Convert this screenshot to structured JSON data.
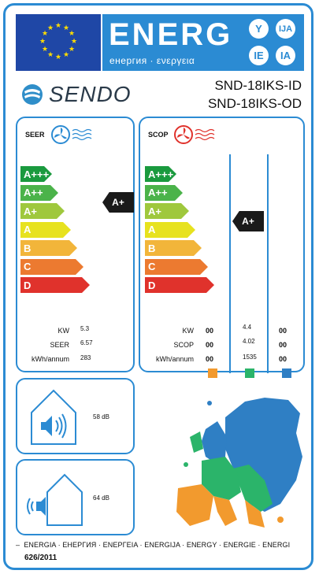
{
  "header": {
    "energy_word": "ENERG",
    "energy_subtitle": "енергия · ενεργεια",
    "badges": [
      "Y",
      "IJA",
      "IE",
      "IA"
    ]
  },
  "brand": {
    "name": "SENDO"
  },
  "models": {
    "indoor": "SND-18IKS-ID",
    "outdoor": "SND-18IKS-OD"
  },
  "seer": {
    "title": "SEER",
    "scale": [
      "A+++",
      "A++",
      "A+",
      "A",
      "B",
      "C",
      "D"
    ],
    "rating": "A+",
    "labels": {
      "kw": "KW",
      "seer": "SEER",
      "kwh": "kWh/annum"
    },
    "values": {
      "kw": "5.3",
      "seer": "6.57",
      "kwh": "283"
    }
  },
  "scop": {
    "title": "SCOP",
    "scale": [
      "A+++",
      "A++",
      "A+",
      "A",
      "B",
      "C",
      "D"
    ],
    "rating": "A+",
    "labels": {
      "kw": "KW",
      "scop": "SCOP",
      "kwh": "kWh/annum"
    },
    "warmer": {
      "kw": "00",
      "scop": "00",
      "kwh": "00"
    },
    "average": {
      "kw": "4.4",
      "scop": "4.02",
      "kwh": "1535"
    },
    "colder": {
      "kw": "00",
      "scop": "00",
      "kwh": "00"
    },
    "zone_colors": {
      "warmer": "#f29a2e",
      "average": "#2bb46a",
      "colder": "#2f7fc4"
    }
  },
  "noise": {
    "indoor": "58 dB",
    "outdoor": "64 dB"
  },
  "footer": {
    "languages": "ENERGIA · ЕНЕРГИЯ · ΕΝΕΡΓΕΙΑ · ENERGIJA · ENERGY · ENERGIE · ENERGI",
    "regulation": "626/2011"
  },
  "colors": {
    "brand_blue": "#2b8bd3",
    "eu_blue": "#1f47a6",
    "scale": [
      "#1a9a3e",
      "#4bb34a",
      "#9fc83d",
      "#e7e21f",
      "#f2b53a",
      "#ec7a30",
      "#e0322c"
    ]
  }
}
